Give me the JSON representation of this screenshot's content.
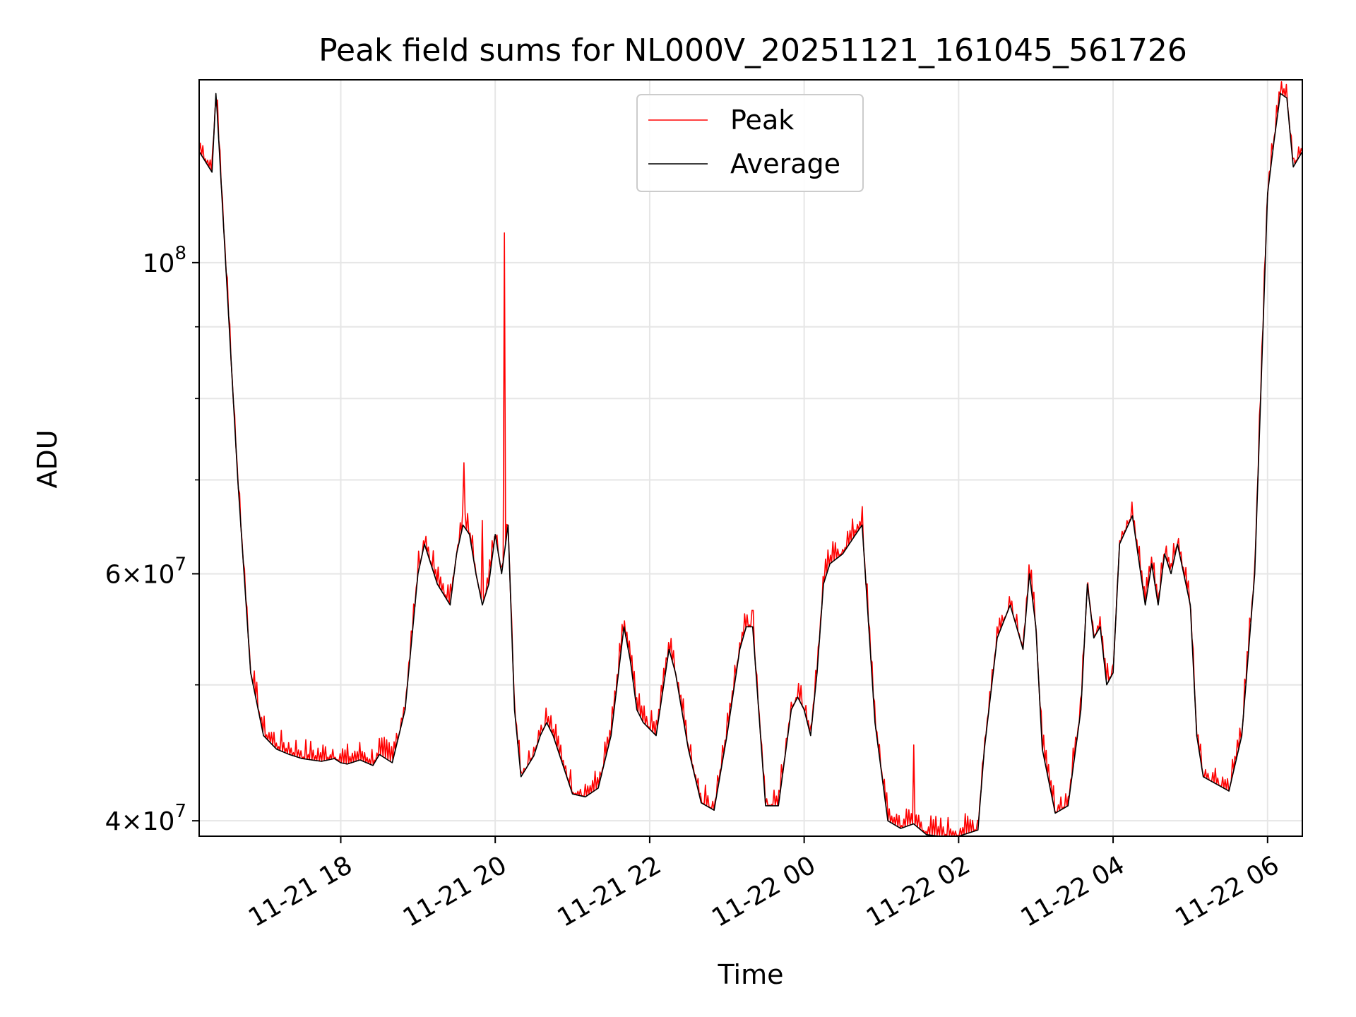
{
  "chart_data": {
    "type": "line",
    "title": "Peak field sums for NL000V_20251121_161045_561726",
    "xlabel": "Time",
    "ylabel": "ADU",
    "yscale": "log",
    "grid": true,
    "legend": {
      "position": "upper center",
      "entries": [
        "Peak",
        "Average"
      ]
    },
    "x_tick_labels": [
      "11-21 18",
      "11-21 20",
      "11-21 22",
      "11-22 00",
      "11-22 02",
      "11-22 04",
      "11-22 06"
    ],
    "y_tick_labels": [
      {
        "base": "4",
        "exp": "7",
        "value": 40000000
      },
      {
        "base": "6",
        "exp": "7",
        "value": 60000000
      },
      {
        "base": "10",
        "exp": "8",
        "value": 100000000
      }
    ],
    "xlim": [
      "2025-11-21 16:10",
      "2025-11-22 06:27"
    ],
    "ylim": [
      39000000,
      135000000
    ],
    "series": [
      {
        "name": "Average",
        "color": "#000000",
        "x": [
          "2025-11-21 16:10",
          "2025-11-21 16:20",
          "2025-11-21 16:23",
          "2025-11-21 16:24",
          "2025-11-21 16:30",
          "2025-11-21 16:40",
          "2025-11-21 16:50",
          "2025-11-21 17:00",
          "2025-11-21 17:10",
          "2025-11-21 17:20",
          "2025-11-21 17:30",
          "2025-11-21 17:45",
          "2025-11-21 17:55",
          "2025-11-21 18:00",
          "2025-11-21 18:05",
          "2025-11-21 18:15",
          "2025-11-21 18:25",
          "2025-11-21 18:30",
          "2025-11-21 18:40",
          "2025-11-21 18:50",
          "2025-11-21 19:00",
          "2025-11-21 19:05",
          "2025-11-21 19:15",
          "2025-11-21 19:25",
          "2025-11-21 19:30",
          "2025-11-21 19:35",
          "2025-11-21 19:40",
          "2025-11-21 19:45",
          "2025-11-21 19:50",
          "2025-11-21 19:55",
          "2025-11-21 20:00",
          "2025-11-21 20:05",
          "2025-11-21 20:10",
          "2025-11-21 20:15",
          "2025-11-21 20:20",
          "2025-11-21 20:30",
          "2025-11-21 20:35",
          "2025-11-21 20:40",
          "2025-11-21 20:45",
          "2025-11-21 21:00",
          "2025-11-21 21:10",
          "2025-11-21 21:20",
          "2025-11-21 21:30",
          "2025-11-21 21:40",
          "2025-11-21 21:45",
          "2025-11-21 21:50",
          "2025-11-21 21:55",
          "2025-11-21 22:05",
          "2025-11-21 22:15",
          "2025-11-21 22:20",
          "2025-11-21 22:30",
          "2025-11-21 22:40",
          "2025-11-21 22:50",
          "2025-11-21 23:00",
          "2025-11-21 23:10",
          "2025-11-21 23:15",
          "2025-11-21 23:20",
          "2025-11-21 23:30",
          "2025-11-21 23:40",
          "2025-11-21 23:50",
          "2025-11-21 23:55",
          "2025-11-22 00:00",
          "2025-11-22 00:05",
          "2025-11-22 00:10",
          "2025-11-22 00:15",
          "2025-11-22 00:20",
          "2025-11-22 00:30",
          "2025-11-22 00:40",
          "2025-11-22 00:45",
          "2025-11-22 00:55",
          "2025-11-22 01:05",
          "2025-11-22 01:15",
          "2025-11-22 01:25",
          "2025-11-22 01:35",
          "2025-11-22 01:45",
          "2025-11-22 02:00",
          "2025-11-22 02:15",
          "2025-11-22 02:20",
          "2025-11-22 02:30",
          "2025-11-22 02:40",
          "2025-11-22 02:45",
          "2025-11-22 02:50",
          "2025-11-22 02:55",
          "2025-11-22 03:00",
          "2025-11-22 03:05",
          "2025-11-22 03:15",
          "2025-11-22 03:25",
          "2025-11-22 03:35",
          "2025-11-22 03:40",
          "2025-11-22 03:45",
          "2025-11-22 03:50",
          "2025-11-22 03:55",
          "2025-11-22 04:00",
          "2025-11-22 04:05",
          "2025-11-22 04:15",
          "2025-11-22 04:25",
          "2025-11-22 04:30",
          "2025-11-22 04:35",
          "2025-11-22 04:40",
          "2025-11-22 04:45",
          "2025-11-22 04:50",
          "2025-11-22 05:00",
          "2025-11-22 05:05",
          "2025-11-22 05:10",
          "2025-11-22 05:20",
          "2025-11-22 05:30",
          "2025-11-22 05:40",
          "2025-11-22 05:50",
          "2025-11-22 06:00",
          "2025-11-22 06:05",
          "2025-11-22 06:10",
          "2025-11-22 06:15",
          "2025-11-22 06:20",
          "2025-11-22 06:27"
        ],
        "values": [
          120000000,
          116000000,
          132000000,
          128000000,
          102000000,
          70000000,
          51000000,
          46000000,
          45000000,
          44600000,
          44300000,
          44100000,
          44300000,
          44000000,
          43900000,
          44200000,
          43800000,
          44600000,
          44000000,
          48000000,
          60000000,
          63000000,
          59000000,
          57000000,
          62000000,
          65000000,
          64000000,
          60000000,
          57000000,
          59000000,
          64000000,
          60000000,
          65000000,
          48000000,
          43000000,
          44500000,
          46000000,
          47000000,
          46000000,
          41800000,
          41600000,
          42200000,
          46000000,
          55000000,
          52000000,
          48000000,
          47000000,
          46000000,
          53000000,
          51000000,
          45000000,
          41200000,
          40700000,
          46000000,
          53000000,
          55000000,
          55000000,
          41000000,
          41000000,
          48000000,
          49000000,
          48000000,
          46000000,
          51000000,
          59000000,
          61000000,
          62000000,
          64000000,
          65000000,
          47000000,
          40000000,
          39500000,
          39800000,
          39100000,
          39000000,
          39000000,
          39400000,
          45000000,
          54000000,
          57000000,
          55000000,
          53000000,
          60000000,
          55000000,
          45000000,
          40500000,
          41000000,
          48000000,
          59000000,
          54000000,
          55000000,
          50000000,
          51000000,
          63000000,
          66000000,
          57000000,
          61000000,
          57000000,
          62000000,
          60000000,
          63000000,
          57000000,
          46000000,
          43000000,
          42500000,
          42000000,
          46000000,
          60000000,
          112000000,
          122000000,
          132000000,
          131000000,
          117000000,
          120000000
        ]
      },
      {
        "name": "Peak",
        "color": "#ff0000",
        "spikes": [
          {
            "x": "2025-11-21 19:36",
            "value": 72000000
          },
          {
            "x": "2025-11-21 19:50",
            "value": 65500000
          },
          {
            "x": "2025-11-21 20:07",
            "value": 105000000
          },
          {
            "x": "2025-11-21 23:20",
            "value": 56500000
          },
          {
            "x": "2025-11-22 00:45",
            "value": 67000000
          },
          {
            "x": "2025-11-22 01:25",
            "value": 45300000
          },
          {
            "x": "2025-11-22 04:15",
            "value": 67500000
          }
        ]
      }
    ]
  }
}
